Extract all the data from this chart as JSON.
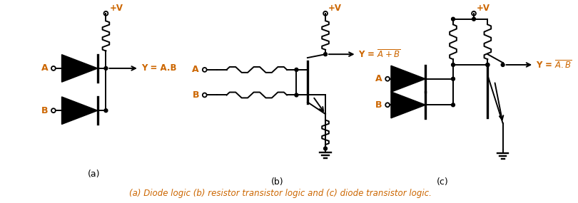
{
  "background": "#ffffff",
  "line_color": "#000000",
  "text_color": "#cc6600",
  "caption": "(a) Diode logic (b) resistor transistor logic and (c) diode transistor logic.",
  "sub_a": "(a)",
  "sub_b": "(b)",
  "sub_c": "(c)"
}
